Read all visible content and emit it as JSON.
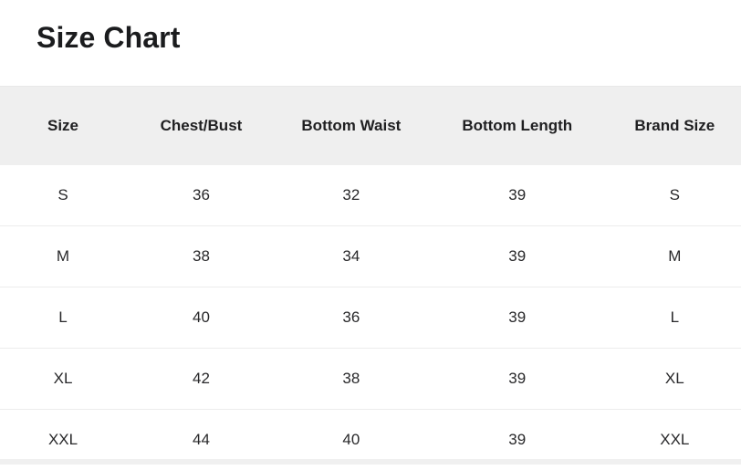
{
  "page": {
    "title": "Size Chart"
  },
  "colors": {
    "background": "#ffffff",
    "header_bg": "#efefef",
    "divider": "#ececec",
    "title_text": "#1b1c1e",
    "header_text": "#1f1f21",
    "cell_text": "#28282a",
    "bottom_strip": "#f0f0f0"
  },
  "table": {
    "columns": [
      "Size",
      "Chest/Bust",
      "Bottom Waist",
      "Bottom Length",
      "Brand Size"
    ],
    "rows": [
      [
        "S",
        "36",
        "32",
        "39",
        "S"
      ],
      [
        "M",
        "38",
        "34",
        "39",
        "M"
      ],
      [
        "L",
        "40",
        "36",
        "39",
        "L"
      ],
      [
        "XL",
        "42",
        "38",
        "39",
        "XL"
      ],
      [
        "XXL",
        "44",
        "40",
        "39",
        "XXL"
      ]
    ]
  }
}
